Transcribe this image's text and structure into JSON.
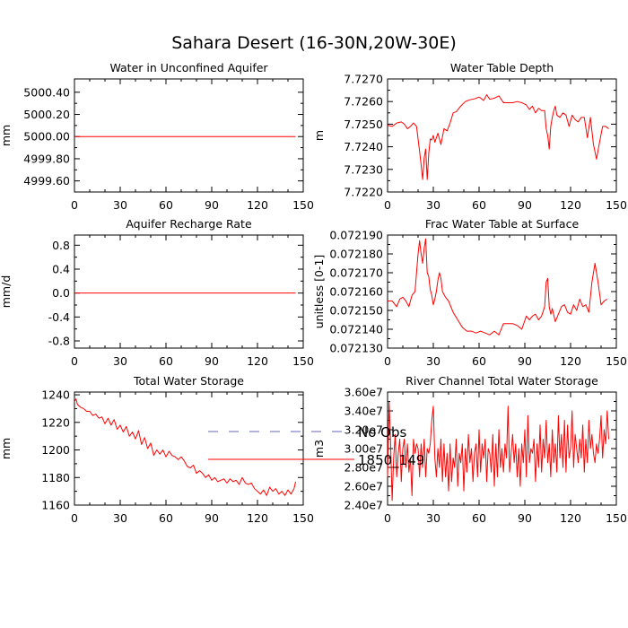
{
  "figure_title": "Sahara Desert (16-30N,20W-30E)",
  "colors": {
    "model": "#ff0000",
    "obs": "#6666bb",
    "axis": "#000000"
  },
  "legend": [
    {
      "label": "No Obs",
      "style": "dashed",
      "color": "#6666bb"
    },
    {
      "label": "1850_149",
      "style": "solid",
      "color": "#ff0000"
    }
  ],
  "chart_data": [
    {
      "type": "line",
      "title": "Water in Unconfined Aquifer",
      "ylabel": "mm",
      "xlim": [
        0,
        150
      ],
      "ylim": [
        4999.5,
        5000.52
      ],
      "xticks": [
        0,
        30,
        60,
        90,
        120,
        150
      ],
      "xtick_labels": [
        "0",
        "30",
        "60",
        "90",
        "120",
        "150"
      ],
      "yticks": [
        4999.6,
        4999.8,
        5000.0,
        5000.2,
        5000.4
      ],
      "ytick_labels": [
        "4999.60",
        "4999.80",
        "5000.00",
        "5000.20",
        "5000.40"
      ],
      "series": [
        {
          "name": "1850_149",
          "x": [
            0,
            145
          ],
          "values": [
            5000.0,
            5000.0
          ]
        }
      ]
    },
    {
      "type": "line",
      "title": "Water Table Depth",
      "ylabel": "m",
      "xlim": [
        0,
        150
      ],
      "ylim": [
        7.722,
        7.727
      ],
      "xticks": [
        0,
        30,
        60,
        90,
        120,
        150
      ],
      "xtick_labels": [
        "0",
        "30",
        "60",
        "90",
        "120",
        "150"
      ],
      "yticks": [
        7.722,
        7.723,
        7.724,
        7.725,
        7.726,
        7.727
      ],
      "ytick_labels": [
        "7.7220",
        "7.7230",
        "7.7240",
        "7.7250",
        "7.7260",
        "7.7270"
      ],
      "series": [
        {
          "name": "1850_149",
          "x": [
            0,
            3,
            6,
            9,
            11,
            13,
            15,
            17,
            19,
            21,
            22,
            23,
            24,
            25,
            26,
            27,
            28,
            29,
            30,
            31,
            33,
            35,
            37,
            39,
            41,
            43,
            45,
            48,
            51,
            54,
            57,
            60,
            63,
            65,
            67,
            70,
            73,
            76,
            79,
            82,
            85,
            88,
            91,
            93,
            95,
            97,
            99,
            101,
            103,
            104,
            105,
            106,
            107,
            108,
            109,
            110,
            111,
            113,
            115,
            117,
            119,
            121,
            123,
            125,
            127,
            129,
            131,
            133,
            135,
            137,
            139,
            141,
            143,
            145
          ],
          "values": [
            7.72495,
            7.7249,
            7.72505,
            7.7251,
            7.725,
            7.7248,
            7.7249,
            7.72505,
            7.7249,
            7.7238,
            7.7232,
            7.72255,
            7.7235,
            7.7239,
            7.72255,
            7.7237,
            7.72435,
            7.7243,
            7.7245,
            7.7242,
            7.7246,
            7.7241,
            7.7248,
            7.7247,
            7.72505,
            7.7255,
            7.72555,
            7.7258,
            7.726,
            7.72608,
            7.72612,
            7.7262,
            7.72605,
            7.7263,
            7.7261,
            7.72615,
            7.72625,
            7.72595,
            7.72595,
            7.72595,
            7.726,
            7.72595,
            7.72585,
            7.72565,
            7.7258,
            7.7255,
            7.7257,
            7.7256,
            7.7256,
            7.7248,
            7.7245,
            7.7239,
            7.7249,
            7.7253,
            7.7256,
            7.7258,
            7.7254,
            7.7253,
            7.7255,
            7.7254,
            7.7249,
            7.7254,
            7.7252,
            7.7251,
            7.7253,
            7.7253,
            7.7244,
            7.7253,
            7.7241,
            7.72345,
            7.7242,
            7.7249,
            7.7249,
            7.7248
          ]
        }
      ]
    },
    {
      "type": "line",
      "title": "Aquifer Recharge Rate",
      "ylabel": "mm/d",
      "xlim": [
        0,
        150
      ],
      "ylim": [
        -0.92,
        0.97
      ],
      "xticks": [
        0,
        30,
        60,
        90,
        120,
        150
      ],
      "xtick_labels": [
        "0",
        "30",
        "60",
        "90",
        "120",
        "150"
      ],
      "yticks": [
        -0.8,
        -0.4,
        0.0,
        0.4,
        0.8
      ],
      "ytick_labels": [
        "-0.8",
        "-0.4",
        "0.0",
        "0.4",
        "0.8"
      ],
      "series": [
        {
          "name": "1850_149",
          "x": [
            0,
            145
          ],
          "values": [
            0.0,
            0.0
          ]
        }
      ]
    },
    {
      "type": "line",
      "title": "Frac Water Table at Surface",
      "ylabel": "unitless [0-1]",
      "xlim": [
        0,
        150
      ],
      "ylim": [
        0.07213,
        0.07219
      ],
      "xticks": [
        0,
        30,
        60,
        90,
        120,
        150
      ],
      "xtick_labels": [
        "0",
        "30",
        "60",
        "90",
        "120",
        "150"
      ],
      "yticks": [
        0.07213,
        0.07214,
        0.07215,
        0.07216,
        0.07217,
        0.07218,
        0.07219
      ],
      "ytick_labels": [
        "0.072130",
        "0.072140",
        "0.072150",
        "0.072160",
        "0.072170",
        "0.072180",
        "0.072190"
      ],
      "series": [
        {
          "name": "1850_149",
          "x": [
            0,
            3,
            6,
            8,
            10,
            12,
            14,
            16,
            18,
            20,
            21,
            22,
            23,
            24,
            25,
            26,
            27,
            28,
            29,
            30,
            31,
            32,
            33,
            34,
            35,
            36,
            38,
            40,
            43,
            46,
            49,
            52,
            55,
            58,
            61,
            64,
            67,
            70,
            73,
            76,
            79,
            82,
            85,
            88,
            91,
            93,
            95,
            97,
            99,
            101,
            103,
            104,
            105,
            106,
            107,
            108,
            110,
            112,
            114,
            116,
            118,
            120,
            122,
            124,
            126,
            128,
            130,
            132,
            134,
            136,
            138,
            140,
            142,
            144
          ],
          "values": [
            0.072155,
            0.072155,
            0.072152,
            0.072156,
            0.072157,
            0.072155,
            0.072152,
            0.072158,
            0.07216,
            0.07218,
            0.072187,
            0.07218,
            0.072175,
            0.072183,
            0.072188,
            0.07217,
            0.072168,
            0.072161,
            0.072158,
            0.072153,
            0.072156,
            0.07216,
            0.072166,
            0.07217,
            0.072167,
            0.07216,
            0.072157,
            0.072155,
            0.072149,
            0.072145,
            0.072141,
            0.072139,
            0.072139,
            0.072138,
            0.072139,
            0.072138,
            0.072137,
            0.072139,
            0.072137,
            0.072143,
            0.072143,
            0.072143,
            0.072142,
            0.07214,
            0.072147,
            0.072145,
            0.072147,
            0.072148,
            0.072145,
            0.072147,
            0.072152,
            0.072165,
            0.072167,
            0.072152,
            0.072148,
            0.072151,
            0.072144,
            0.072148,
            0.072152,
            0.072153,
            0.072149,
            0.072148,
            0.072153,
            0.07215,
            0.072156,
            0.072152,
            0.072153,
            0.072149,
            0.072165,
            0.072175,
            0.072165,
            0.072153,
            0.072155,
            0.072156
          ]
        }
      ]
    },
    {
      "type": "line",
      "title": "Total Water Storage",
      "ylabel": "mm",
      "xlim": [
        0,
        150
      ],
      "ylim": [
        1160,
        1242
      ],
      "xticks": [
        0,
        30,
        60,
        90,
        120,
        150
      ],
      "xtick_labels": [
        "0",
        "30",
        "60",
        "90",
        "120",
        "150"
      ],
      "yticks": [
        1160,
        1180,
        1200,
        1220,
        1240
      ],
      "ytick_labels": [
        "1160",
        "1180",
        "1200",
        "1220",
        "1240"
      ],
      "series": [
        {
          "name": "1850_149",
          "x": [
            0,
            1,
            2,
            3,
            4,
            6,
            8,
            10,
            12,
            14,
            16,
            18,
            20,
            22,
            24,
            26,
            28,
            30,
            32,
            34,
            36,
            38,
            40,
            42,
            44,
            46,
            48,
            50,
            52,
            54,
            56,
            58,
            60,
            62,
            64,
            66,
            68,
            70,
            72,
            74,
            76,
            78,
            80,
            82,
            84,
            86,
            88,
            90,
            92,
            94,
            96,
            98,
            100,
            102,
            104,
            106,
            108,
            110,
            112,
            114,
            116,
            118,
            120,
            122,
            124,
            126,
            128,
            130,
            132,
            134,
            136,
            138,
            140,
            142,
            144,
            145
          ],
          "values": [
            1235,
            1237,
            1233,
            1232,
            1231,
            1230,
            1228,
            1228,
            1225,
            1226,
            1223,
            1224,
            1219,
            1223,
            1218,
            1222,
            1215,
            1218,
            1213,
            1217,
            1210,
            1213,
            1208,
            1214,
            1204,
            1209,
            1201,
            1205,
            1196,
            1200,
            1197,
            1200,
            1195,
            1199,
            1196,
            1195,
            1193,
            1195,
            1192,
            1188,
            1187,
            1189,
            1183,
            1185,
            1183,
            1180,
            1182,
            1178,
            1180,
            1177,
            1178,
            1179,
            1176,
            1179,
            1177,
            1178,
            1175,
            1180,
            1176,
            1175,
            1176,
            1172,
            1170,
            1168,
            1171,
            1167,
            1173,
            1170,
            1172,
            1168,
            1170,
            1167,
            1171,
            1168,
            1172,
            1177
          ]
        }
      ]
    },
    {
      "type": "line",
      "title": "River Channel Total Water Storage",
      "ylabel": "m3",
      "xlim": [
        0,
        150
      ],
      "ylim": [
        24000000,
        36000000
      ],
      "xticks": [
        0,
        30,
        60,
        90,
        120,
        150
      ],
      "xtick_labels": [
        "0",
        "30",
        "60",
        "90",
        "120",
        "150"
      ],
      "yticks": [
        24000000,
        26000000,
        28000000,
        30000000,
        32000000,
        34000000,
        36000000
      ],
      "ytick_labels": [
        "2.40e7",
        "2.60e7",
        "2.80e7",
        "3.00e7",
        "3.20e7",
        "3.40e7",
        "3.60e7"
      ],
      "series": [
        {
          "name": "1850_149",
          "x": [
            0,
            1,
            2,
            3,
            4,
            5,
            6,
            7,
            8,
            9,
            10,
            11,
            12,
            13,
            14,
            15,
            16,
            17,
            18,
            19,
            20,
            21,
            22,
            23,
            24,
            25,
            26,
            27,
            28,
            29,
            30,
            31,
            32,
            33,
            34,
            35,
            36,
            37,
            38,
            39,
            40,
            41,
            42,
            43,
            44,
            45,
            46,
            47,
            48,
            49,
            50,
            51,
            52,
            53,
            54,
            55,
            56,
            57,
            58,
            59,
            60,
            61,
            62,
            63,
            64,
            65,
            66,
            67,
            68,
            69,
            70,
            71,
            72,
            73,
            74,
            75,
            76,
            77,
            78,
            79,
            80,
            81,
            82,
            83,
            84,
            85,
            86,
            87,
            88,
            89,
            90,
            91,
            92,
            93,
            94,
            95,
            96,
            97,
            98,
            99,
            100,
            101,
            102,
            103,
            104,
            105,
            106,
            107,
            108,
            109,
            110,
            111,
            112,
            113,
            114,
            115,
            116,
            117,
            118,
            119,
            120,
            121,
            122,
            123,
            124,
            125,
            126,
            127,
            128,
            129,
            130,
            131,
            132,
            133,
            134,
            135,
            136,
            137,
            138,
            139,
            140,
            141,
            142,
            143,
            144,
            145
          ],
          "values": [
            27000000,
            35000000,
            30500000,
            24500000,
            29000000,
            31500000,
            27000000,
            29500000,
            31000000,
            26500000,
            30000000,
            31000000,
            28000000,
            30500000,
            27500000,
            29000000,
            25000000,
            31000000,
            29500000,
            30500000,
            30000000,
            27000000,
            30500000,
            28000000,
            31000000,
            27000000,
            30000000,
            29500000,
            30500000,
            33000000,
            34500000,
            29000000,
            27000000,
            30000000,
            28000000,
            31000000,
            26500000,
            30500000,
            27000000,
            29500000,
            25500000,
            30500000,
            26500000,
            29000000,
            28000000,
            31000000,
            26000000,
            29500000,
            28500000,
            30500000,
            25500000,
            30000000,
            27500000,
            31500000,
            28500000,
            30000000,
            26500000,
            29500000,
            30500000,
            27000000,
            32000000,
            27500000,
            30500000,
            29000000,
            31000000,
            26500000,
            30000000,
            29500000,
            27500000,
            31500000,
            26000000,
            30500000,
            27000000,
            32000000,
            28000000,
            30000000,
            27500000,
            30500000,
            29000000,
            34500000,
            27500000,
            29500000,
            31500000,
            28500000,
            30500000,
            27000000,
            30000000,
            26000000,
            30500000,
            28500000,
            32000000,
            27000000,
            33500000,
            28500000,
            30000000,
            29500000,
            31000000,
            26500000,
            30500000,
            28000000,
            32500000,
            27500000,
            31000000,
            29000000,
            33000000,
            28500000,
            30500000,
            27000000,
            32000000,
            28500000,
            30500000,
            27500000,
            33500000,
            29000000,
            31500000,
            28000000,
            33000000,
            27500000,
            32500000,
            29000000,
            30000000,
            34000000,
            28000000,
            31500000,
            30000000,
            28500000,
            31000000,
            29000000,
            32500000,
            27500000,
            31000000,
            28500000,
            33000000,
            30000000,
            31500000,
            29500000,
            28500000,
            30500000,
            29500000,
            31000000,
            33500000,
            29000000,
            32000000,
            30500000,
            34000000,
            31000000
          ]
        }
      ]
    }
  ]
}
